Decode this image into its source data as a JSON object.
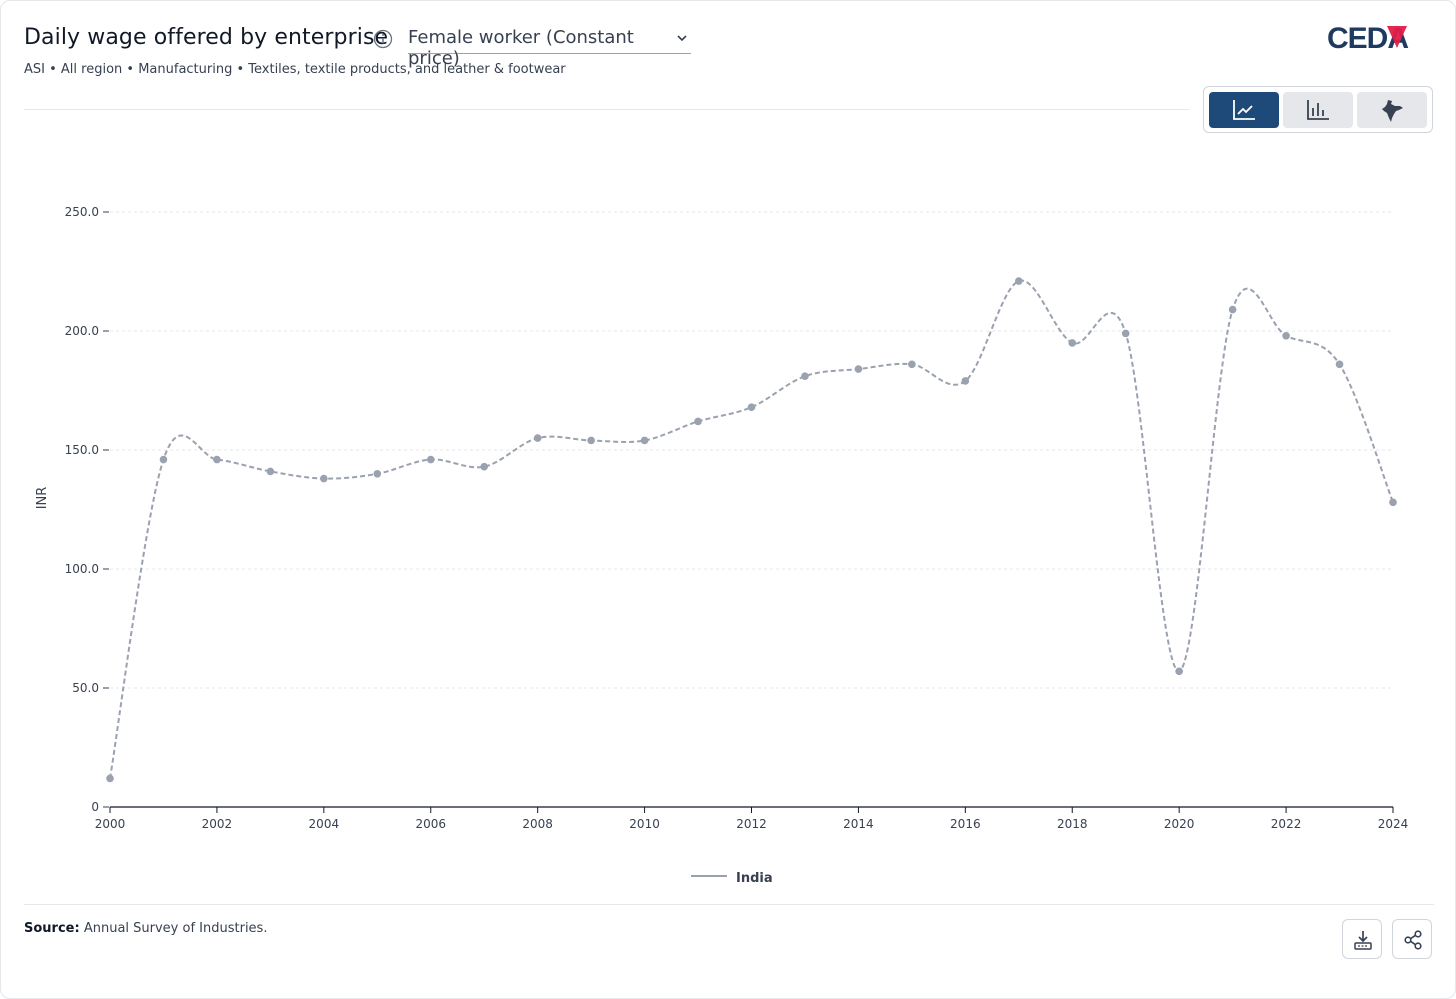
{
  "header": {
    "title": "Daily wage offered by enterprise",
    "indicator_selected": "Female worker (Constant price)",
    "subtitle": "ASI • All region • Manufacturing • Textiles, textile products, and leather & footwear",
    "logo_text": "CEDA"
  },
  "view_switch": {
    "options": [
      "line-chart-icon",
      "bar-chart-icon",
      "india-map-icon"
    ],
    "active": "line-chart-icon",
    "active_color": "#1e4a7a"
  },
  "footer": {
    "source_label": "Source:",
    "source_text": "Annual Survey of Industries."
  },
  "colors": {
    "series": "#9aa1af",
    "brand_dark": "#1e3a5f",
    "brand_red": "#e11d48"
  },
  "chart_data": {
    "type": "line",
    "title": "",
    "xlabel": "",
    "ylabel": "INR",
    "xlim": [
      2000,
      2024
    ],
    "ylim": [
      0,
      250
    ],
    "x_ticks": [
      2000,
      2002,
      2004,
      2006,
      2008,
      2010,
      2012,
      2014,
      2016,
      2018,
      2020,
      2022,
      2024
    ],
    "y_ticks": [
      0,
      50,
      100,
      150,
      200,
      250
    ],
    "y_tick_labels": [
      "0",
      "50.0",
      "100.0",
      "150.0",
      "200.0",
      "250.0"
    ],
    "grid": true,
    "legend_position": "bottom-center",
    "series": [
      {
        "name": "India",
        "line_style": "dashed",
        "x": [
          2000,
          2001,
          2002,
          2003,
          2004,
          2005,
          2006,
          2007,
          2008,
          2009,
          2010,
          2011,
          2012,
          2013,
          2014,
          2015,
          2016,
          2017,
          2018,
          2019,
          2020,
          2021,
          2022,
          2023,
          2024
        ],
        "values": [
          12,
          146,
          146,
          141,
          138,
          140,
          146,
          143,
          155,
          154,
          154,
          162,
          168,
          181,
          184,
          186,
          179,
          221,
          195,
          199,
          57,
          209,
          198,
          186,
          128
        ]
      }
    ]
  }
}
